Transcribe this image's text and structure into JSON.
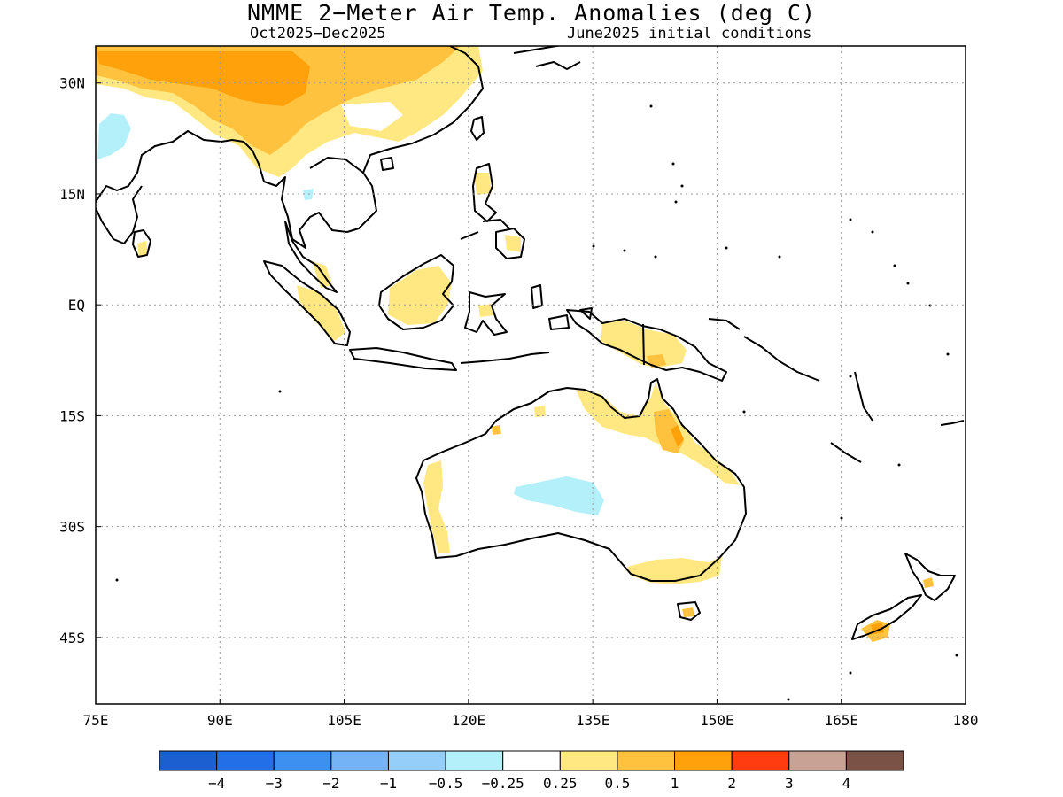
{
  "title": "NMME 2−Meter Air Temp. Anomalies (deg C)",
  "subtitle_left": "Oct2025−Dec2025",
  "subtitle_right": "June2025 initial conditions",
  "map": {
    "lon_range": [
      75,
      180
    ],
    "lat_range": [
      -54,
      35
    ],
    "lon_ticks": [
      {
        "value": 75,
        "label": "75E"
      },
      {
        "value": 90,
        "label": "90E"
      },
      {
        "value": 105,
        "label": "105E"
      },
      {
        "value": 120,
        "label": "120E"
      },
      {
        "value": 135,
        "label": "135E"
      },
      {
        "value": 150,
        "label": "150E"
      },
      {
        "value": 165,
        "label": "165E"
      },
      {
        "value": 180,
        "label": "180"
      }
    ],
    "lat_ticks": [
      {
        "value": 30,
        "label": "30N"
      },
      {
        "value": 15,
        "label": "15N"
      },
      {
        "value": 0,
        "label": "EQ"
      },
      {
        "value": -15,
        "label": "15S"
      },
      {
        "value": -30,
        "label": "30S"
      },
      {
        "value": -45,
        "label": "45S"
      }
    ],
    "grid": "dotted"
  },
  "colorbar": {
    "colors": [
      "#1c5fd1",
      "#226fe8",
      "#3d8ff0",
      "#73b3f6",
      "#95cef9",
      "#b4f0fa",
      "#ffffff",
      "#ffe882",
      "#ffc23e",
      "#ffa10a",
      "#ff3c10",
      "#c8a295",
      "#7a5246"
    ],
    "labels": [
      "−4",
      "−3",
      "−2",
      "−1",
      "−0.5",
      "−0.25",
      "0.25",
      "0.5",
      "1",
      "2",
      "3",
      "4"
    ]
  },
  "colors": {
    "warm_light": "#ffe882",
    "warm_mid": "#ffc23e",
    "warm_strong": "#ffa10a",
    "cool_light": "#b4f0fa"
  }
}
